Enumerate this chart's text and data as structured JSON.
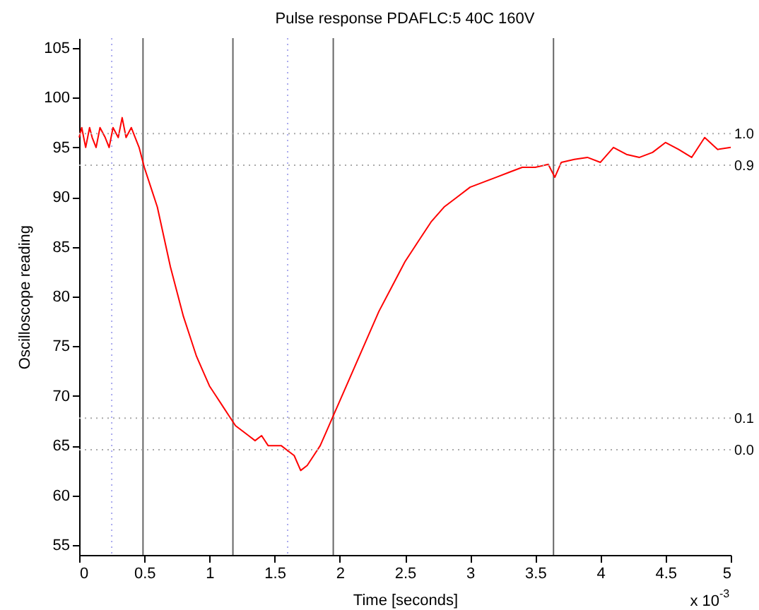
{
  "chart_data": {
    "type": "line",
    "title": "Pulse response PDAFLC:5 40C 160V",
    "xlabel": "Time [seconds]",
    "ylabel": "Oscilloscope reading",
    "annotations": [
      "x 10$^{-3}$"
    ],
    "xlim": [
      0,
      5
    ],
    "xticks": [
      0,
      0.5,
      1,
      1.5,
      2,
      2.5,
      3,
      3.5,
      4,
      4.5,
      5
    ],
    "ylim": [
      54,
      106
    ],
    "yticks": [
      55,
      60,
      65,
      70,
      75,
      80,
      85,
      90,
      95,
      100,
      105
    ],
    "y2lim": [
      -0.333,
      1.302
    ],
    "y2ticks": [
      {
        "value": 1,
        "label": "1.0"
      },
      0.9,
      0.1,
      {
        "value": 0,
        "label": "0.0"
      }
    ],
    "grid": false,
    "marker": "none",
    "line_style": "solid",
    "x": [
      0,
      0.02,
      0.05,
      0.08,
      0.1,
      0.13,
      0.16,
      0.2,
      0.23,
      0.26,
      0.3,
      0.33,
      0.36,
      0.4,
      0.43,
      0.46,
      0.5,
      0.55,
      0.6,
      0.65,
      0.7,
      0.75,
      0.8,
      0.85,
      0.9,
      0.95,
      1.0,
      1.05,
      1.1,
      1.15,
      1.2,
      1.25,
      1.3,
      1.35,
      1.4,
      1.45,
      1.5,
      1.55,
      1.6,
      1.65,
      1.7,
      1.75,
      1.8,
      1.85,
      1.9,
      1.95,
      2.0,
      2.1,
      2.2,
      2.3,
      2.4,
      2.5,
      2.6,
      2.7,
      2.8,
      2.9,
      3.0,
      3.1,
      3.2,
      3.3,
      3.4,
      3.5,
      3.6,
      3.65,
      3.7,
      3.8,
      3.9,
      4.0,
      4.1,
      4.2,
      4.3,
      4.4,
      4.5,
      4.6,
      4.7,
      4.8,
      4.9,
      5.0
    ],
    "series": [
      {
        "color": "#ff0000",
        "values": [
          96,
          97,
          95,
          97,
          96,
          95,
          97,
          96,
          95,
          97,
          96,
          98,
          96,
          97,
          96,
          95,
          93,
          91,
          89,
          86,
          83,
          80.5,
          78,
          76,
          74,
          72.5,
          71,
          70,
          69,
          68,
          67,
          66.5,
          66,
          65.5,
          66,
          65,
          65,
          65,
          64.5,
          64,
          62.5,
          63,
          64,
          65,
          66.5,
          68,
          69.5,
          72.5,
          75.5,
          78.5,
          81,
          83.5,
          85.5,
          87.5,
          89,
          90,
          91,
          91.5,
          92,
          92.5,
          93,
          93,
          93.3,
          92,
          93.5,
          93.8,
          94,
          93.5,
          95,
          94.3,
          94,
          94.5,
          95.5,
          94.8,
          94,
          96,
          94.8,
          95
        ]
      }
    ],
    "ref_lines": [
      {
        "axis": "y2",
        "value": 1,
        "color": "#aaaaaa",
        "line_style": "dotted"
      },
      {
        "axis": "y2",
        "value": 0.9,
        "color": "#aaaaaa",
        "line_style": "dotted"
      },
      {
        "axis": "y2",
        "value": 0.1,
        "color": "#aaaaaa",
        "line_style": "dotted"
      },
      {
        "axis": "y2",
        "value": 0,
        "color": "#aaaaaa",
        "line_style": "dotted"
      },
      {
        "axis": "x",
        "value": 0.25,
        "color": "#aaaaee",
        "line_style": "dotted"
      },
      {
        "axis": "x",
        "value": 1.6,
        "color": "#aaaaee",
        "line_style": "dotted"
      },
      {
        "axis": "x",
        "value": 0.49,
        "color": "#666666",
        "line_style": "solid"
      },
      {
        "axis": "x",
        "value": 1.18,
        "color": "#666666",
        "line_style": "solid"
      },
      {
        "axis": "x",
        "value": 1.95,
        "color": "#666666",
        "line_style": "solid"
      },
      {
        "axis": "x",
        "value": 3.64,
        "color": "#666666",
        "line_style": "solid"
      }
    ]
  }
}
